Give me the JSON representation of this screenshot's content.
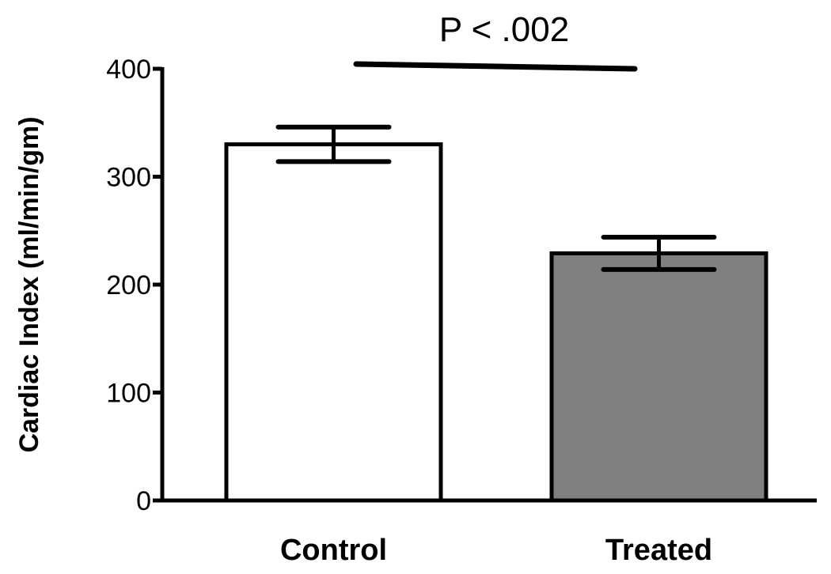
{
  "chart_data": {
    "type": "bar",
    "title": "",
    "xlabel": "",
    "ylabel": "Cardiac Index (ml/min/gm)",
    "ylim": [
      0,
      400
    ],
    "yticks": [
      0,
      100,
      200,
      300,
      400
    ],
    "ytick_labels": [
      "0",
      "100",
      "200",
      "300",
      "400"
    ],
    "categories": [
      "Control",
      "Treated"
    ],
    "values": [
      330,
      229
    ],
    "error": [
      16,
      15
    ],
    "colors": [
      "#ffffff",
      "#808080"
    ],
    "grid": false,
    "annotation": {
      "text": "P < .002",
      "from": "Control",
      "to": "Treated"
    }
  }
}
